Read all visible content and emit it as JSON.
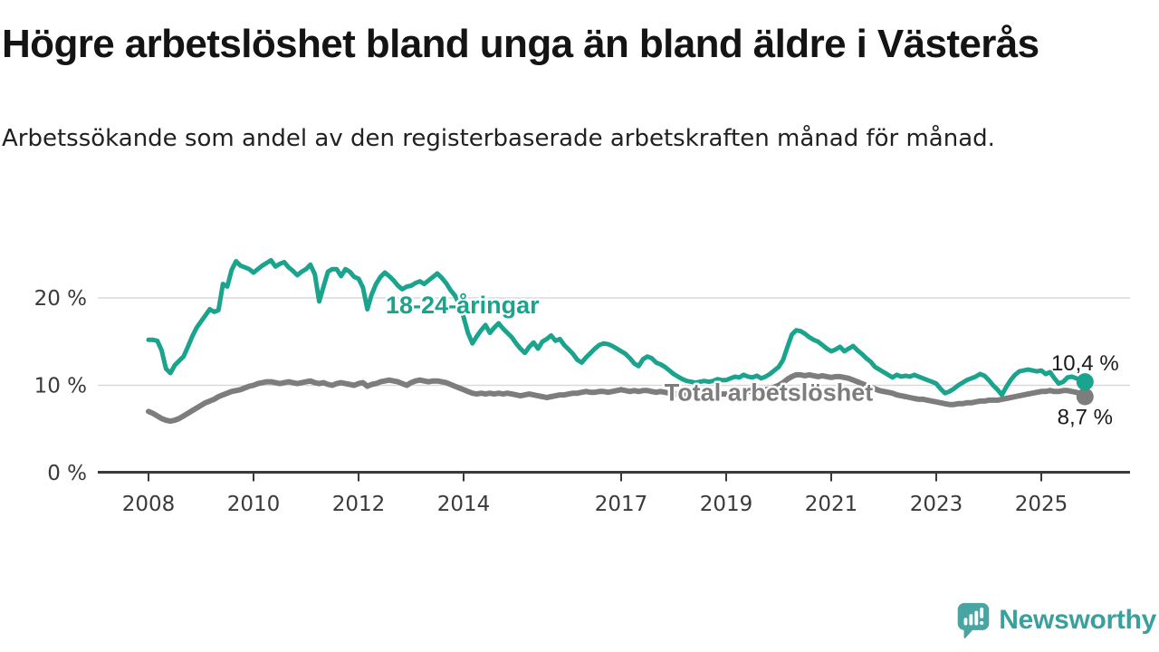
{
  "branding": {
    "logo_text": "Newsworthy"
  },
  "colors": {
    "background": "#ffffff",
    "youth_line": "#1aa38d",
    "total_line": "#7d7d7d",
    "grid": "#d9d9d9",
    "axis": "#3a3a3a",
    "value_text": "#1a1a1a",
    "logo_teal": "#4aa5a2",
    "logo_text_color": "#3aa09d"
  },
  "chart_data": {
    "type": "line",
    "title": "Högre arbetslöshet bland unga än bland äldre i Västerås",
    "subtitle": "Arbetssökande som andel av den registerbaserade arbetskraften månad för månad.",
    "unit": "%",
    "grid": "horizontal",
    "legend_position": "inline-labels",
    "x_start_year": 2008,
    "x_step_months": 1,
    "x_ticks": [
      2008,
      2010,
      2012,
      2014,
      2017,
      2019,
      2021,
      2023,
      2025
    ],
    "y_ticks": [
      {
        "value": 0,
        "label": "0 %"
      },
      {
        "value": 10,
        "label": "10 %"
      },
      {
        "value": 20,
        "label": "20 %"
      }
    ],
    "ylim": [
      0,
      26
    ],
    "xlim": [
      2007.05,
      2026.7
    ],
    "annotations": [
      {
        "series": 0,
        "text": "18-24-åringar",
        "x": 2013.98,
        "y": 19.2
      },
      {
        "series": 1,
        "text": "Total arbetslöshet",
        "x": 2019.81,
        "y": 9.2
      }
    ],
    "series": [
      {
        "name": "18-24-åringar",
        "color": "#1aa38d",
        "line_width": 5,
        "end_label": "10,4 %",
        "end_value": 10.4,
        "values": [
          15.2,
          15.2,
          15.1,
          14.0,
          11.9,
          11.4,
          12.3,
          12.8,
          13.3,
          14.4,
          15.6,
          16.6,
          17.3,
          18.0,
          18.7,
          18.4,
          18.6,
          21.6,
          21.3,
          23.2,
          24.2,
          23.7,
          23.5,
          23.3,
          22.9,
          23.3,
          23.7,
          24.0,
          24.3,
          23.6,
          23.9,
          24.1,
          23.5,
          23.1,
          22.6,
          23.0,
          23.3,
          23.8,
          22.7,
          19.6,
          21.3,
          23.0,
          23.3,
          23.3,
          22.5,
          23.3,
          23.0,
          22.4,
          22.2,
          21.2,
          18.7,
          20.4,
          21.6,
          22.4,
          22.9,
          22.5,
          22.0,
          21.4,
          21.0,
          21.3,
          21.4,
          21.7,
          21.9,
          21.6,
          22.0,
          22.4,
          22.8,
          22.3,
          21.7,
          20.9,
          20.3,
          19.3,
          17.8,
          16.0,
          14.8,
          15.6,
          16.3,
          16.9,
          16.0,
          16.6,
          17.1,
          16.5,
          16.0,
          15.5,
          14.8,
          14.2,
          13.7,
          14.4,
          14.9,
          14.2,
          15.0,
          15.3,
          15.7,
          15.1,
          15.3,
          14.6,
          14.1,
          13.6,
          12.9,
          12.6,
          13.2,
          13.7,
          14.2,
          14.6,
          14.8,
          14.7,
          14.5,
          14.2,
          13.9,
          13.6,
          13.1,
          12.5,
          12.2,
          13.0,
          13.3,
          13.1,
          12.6,
          12.4,
          12.1,
          11.7,
          11.3,
          11.0,
          10.7,
          10.5,
          10.4,
          10.3,
          10.4,
          10.5,
          10.4,
          10.5,
          10.7,
          10.6,
          10.6,
          10.8,
          11.0,
          10.9,
          11.2,
          11.0,
          10.9,
          11.1,
          10.8,
          11.0,
          11.3,
          11.7,
          12.1,
          12.9,
          14.4,
          15.8,
          16.3,
          16.2,
          15.9,
          15.5,
          15.2,
          15.0,
          14.6,
          14.2,
          13.9,
          14.1,
          14.4,
          13.9,
          14.2,
          14.5,
          14.0,
          13.6,
          13.1,
          12.7,
          12.1,
          11.8,
          11.5,
          11.2,
          10.9,
          11.2,
          11.0,
          11.1,
          11.0,
          11.2,
          11.0,
          10.8,
          10.6,
          10.4,
          10.2,
          9.6,
          9.1,
          9.3,
          9.6,
          10.0,
          10.3,
          10.6,
          10.8,
          11.0,
          11.3,
          11.1,
          10.6,
          10.0,
          9.5,
          8.9,
          9.8,
          10.6,
          11.2,
          11.6,
          11.7,
          11.8,
          11.7,
          11.6,
          11.7,
          11.3,
          11.5,
          10.8,
          10.2,
          10.4,
          10.9,
          11.0,
          10.8,
          10.6,
          10.4
        ]
      },
      {
        "name": "Total arbetslöshet",
        "color": "#7d7d7d",
        "line_width": 6,
        "end_label": "8,7 %",
        "end_value": 8.7,
        "values": [
          7.0,
          6.8,
          6.5,
          6.2,
          6.0,
          5.9,
          6.0,
          6.2,
          6.5,
          6.8,
          7.1,
          7.4,
          7.7,
          8.0,
          8.2,
          8.4,
          8.7,
          8.9,
          9.1,
          9.3,
          9.4,
          9.5,
          9.7,
          9.9,
          10.0,
          10.2,
          10.3,
          10.4,
          10.4,
          10.3,
          10.2,
          10.3,
          10.4,
          10.3,
          10.2,
          10.3,
          10.4,
          10.5,
          10.3,
          10.2,
          10.3,
          10.1,
          10.0,
          10.2,
          10.3,
          10.2,
          10.1,
          10.0,
          10.2,
          10.3,
          9.9,
          10.1,
          10.2,
          10.4,
          10.5,
          10.6,
          10.5,
          10.4,
          10.2,
          10.0,
          10.3,
          10.5,
          10.6,
          10.5,
          10.4,
          10.5,
          10.5,
          10.4,
          10.3,
          10.1,
          9.9,
          9.7,
          9.5,
          9.3,
          9.1,
          9.0,
          9.1,
          9.0,
          9.1,
          9.0,
          9.1,
          9.0,
          9.1,
          9.0,
          8.9,
          8.8,
          8.9,
          9.0,
          8.9,
          8.8,
          8.7,
          8.6,
          8.7,
          8.8,
          8.9,
          8.9,
          9.0,
          9.1,
          9.1,
          9.2,
          9.3,
          9.2,
          9.2,
          9.3,
          9.3,
          9.2,
          9.3,
          9.4,
          9.5,
          9.4,
          9.3,
          9.4,
          9.3,
          9.4,
          9.4,
          9.3,
          9.2,
          9.3,
          9.2,
          9.1,
          9.0,
          9.0,
          8.9,
          8.9,
          8.8,
          8.8,
          8.9,
          8.8,
          8.8,
          8.9,
          8.9,
          9.0,
          9.0,
          9.1,
          9.1,
          9.2,
          9.2,
          9.3,
          9.3,
          9.4,
          9.4,
          9.5,
          9.6,
          9.8,
          10.0,
          10.3,
          10.7,
          11.0,
          11.2,
          11.2,
          11.1,
          11.2,
          11.1,
          11.0,
          11.1,
          11.0,
          10.9,
          11.0,
          11.0,
          10.9,
          10.8,
          10.6,
          10.4,
          10.2,
          10.0,
          9.8,
          9.6,
          9.4,
          9.3,
          9.2,
          9.1,
          8.9,
          8.8,
          8.7,
          8.6,
          8.5,
          8.4,
          8.4,
          8.3,
          8.2,
          8.1,
          8.0,
          7.9,
          7.8,
          7.8,
          7.9,
          7.9,
          8.0,
          8.0,
          8.1,
          8.2,
          8.2,
          8.3,
          8.3,
          8.3,
          8.4,
          8.5,
          8.6,
          8.7,
          8.8,
          8.9,
          9.0,
          9.1,
          9.2,
          9.3,
          9.3,
          9.4,
          9.3,
          9.3,
          9.4,
          9.4,
          9.3,
          9.2,
          9.0,
          8.7
        ]
      }
    ]
  }
}
